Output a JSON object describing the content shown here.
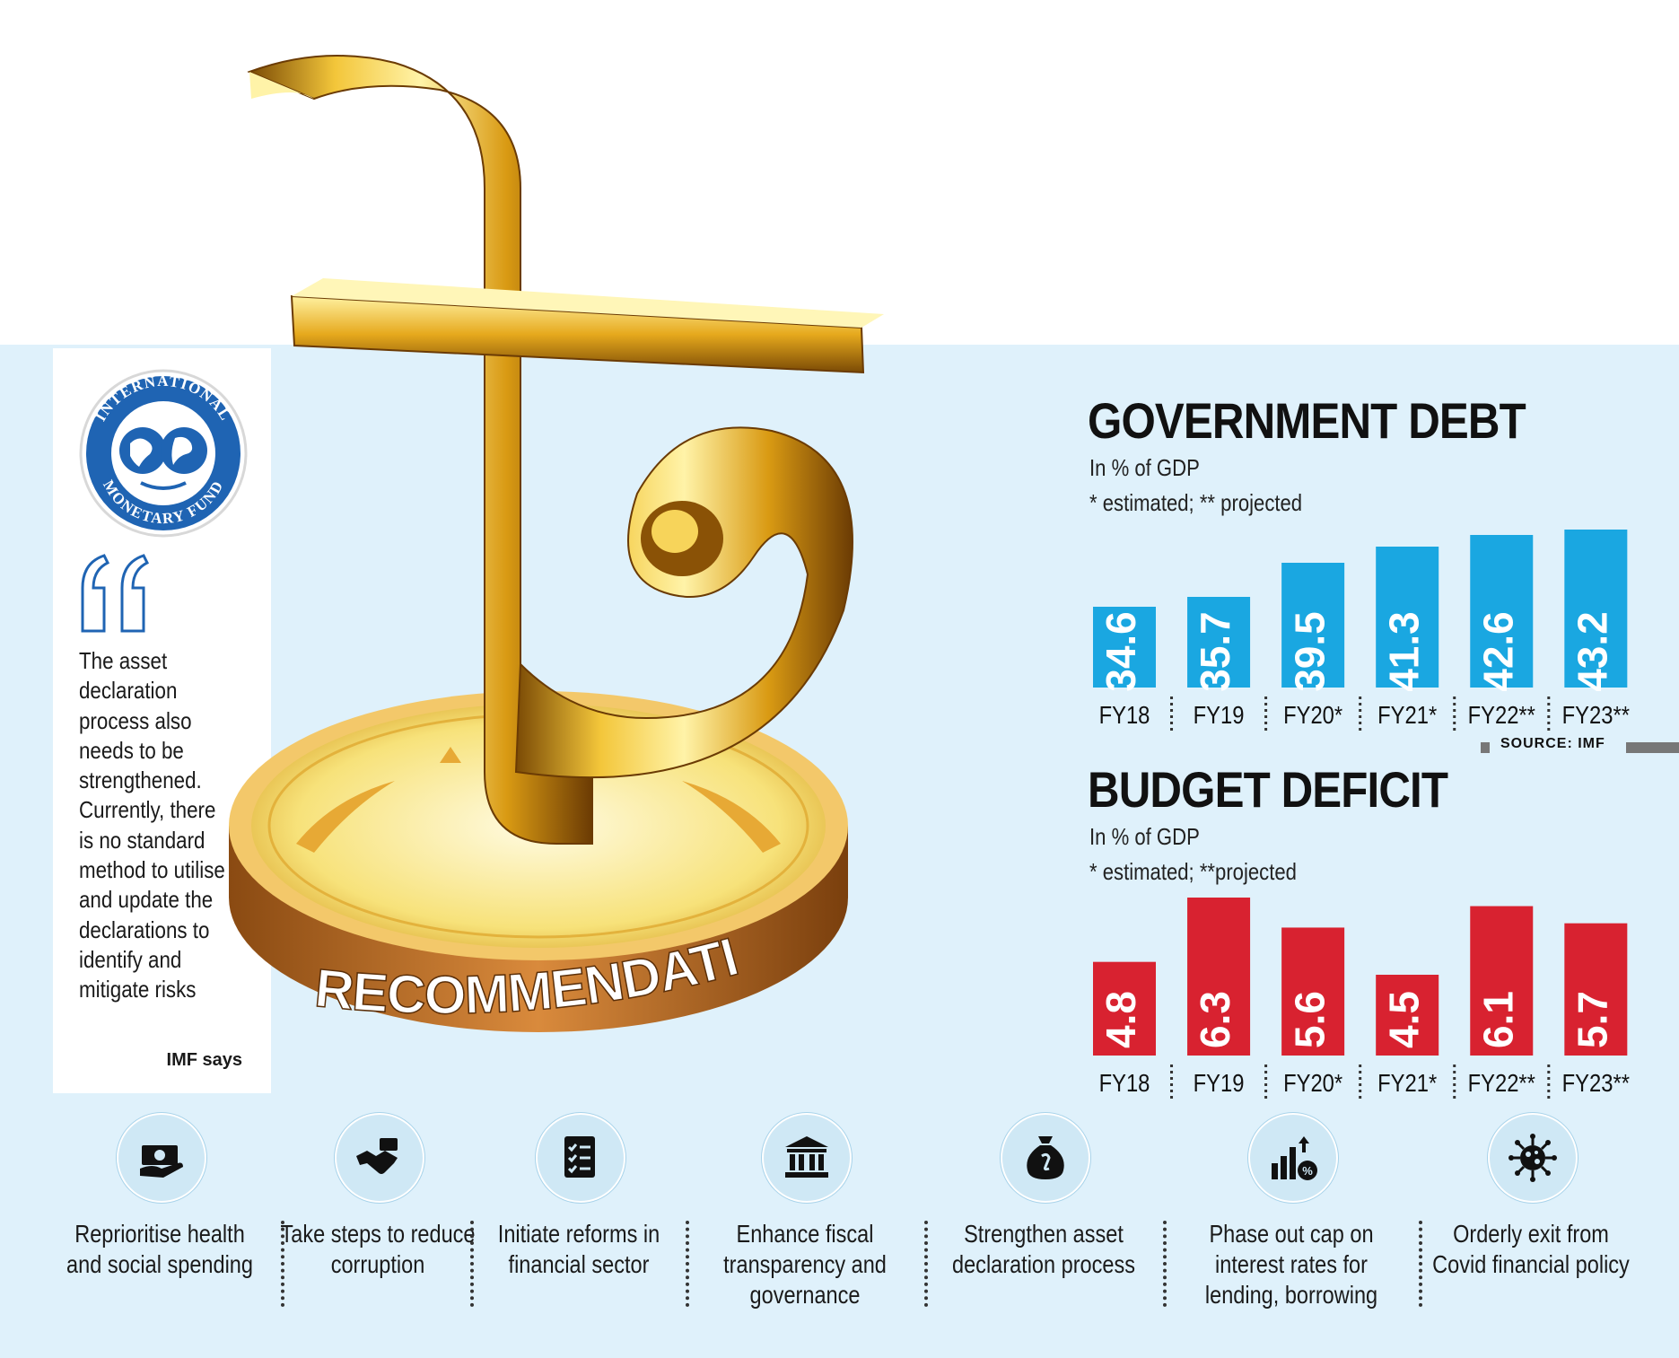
{
  "quote": {
    "text": "The asset declaration process also needs to be strengthened. Currently, there is no standard method to utilise and update the declarations to identify and mitigate risks",
    "source": "IMF says"
  },
  "logo": {
    "ring_text": "INTERNATIONAL MONETARY FUND"
  },
  "banner": "IMF RECOMMENDATIONS",
  "source_note": "SOURCE: IMF",
  "chart_data": [
    {
      "type": "bar",
      "title": "GOVERNMENT DEBT",
      "subtitle": "In % of GDP",
      "note": "* estimated; ** projected",
      "categories": [
        "FY18",
        "FY19",
        "FY20*",
        "FY21*",
        "FY22**",
        "FY23**"
      ],
      "values": [
        34.6,
        35.7,
        39.5,
        41.3,
        42.6,
        43.2
      ],
      "labels": [
        "34.6",
        "35.7",
        "39.5",
        "41.3",
        "42.6",
        "43.2"
      ],
      "color": "#1aa7e1"
    },
    {
      "type": "bar",
      "title": "BUDGET DEFICIT",
      "subtitle": "In % of GDP",
      "note": "* estimated; **projected",
      "categories": [
        "FY18",
        "FY19",
        "FY20*",
        "FY21*",
        "FY22**",
        "FY23**"
      ],
      "values": [
        4.8,
        6.3,
        5.6,
        4.5,
        6.1,
        5.7
      ],
      "labels": [
        "4.8",
        "6.3",
        "5.6",
        "4.5",
        "6.1",
        "5.7"
      ],
      "color": "#d82230"
    }
  ],
  "recommendations": [
    {
      "label": "Reprioritise health and social spending",
      "icon": "money-hand-icon"
    },
    {
      "label": "Take steps to reduce corruption",
      "icon": "handshake-money-icon"
    },
    {
      "label": "Initiate reforms in financial sector",
      "icon": "checklist-icon"
    },
    {
      "label": "Enhance fiscal transparency and governance",
      "icon": "government-building-icon"
    },
    {
      "label": "Strengthen asset declaration process",
      "icon": "money-bag-icon"
    },
    {
      "label": "Phase out cap on interest rates for lending, borrowing",
      "icon": "rising-bars-percent-icon"
    },
    {
      "label": "Orderly exit from Covid financial policy",
      "icon": "virus-icon"
    }
  ]
}
